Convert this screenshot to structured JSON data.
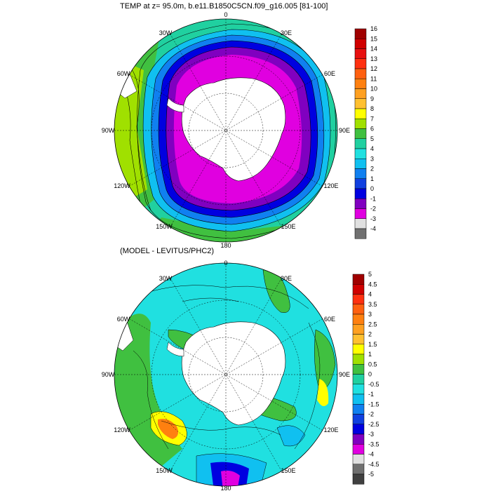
{
  "top_panel": {
    "title": "TEMP at z=  95.0m, b.e11.B1850C5CN.f09_g16.005 [81-100]",
    "longitude_labels": [
      "0",
      "30E",
      "60E",
      "90E",
      "120E",
      "150E",
      "180",
      "150W",
      "120W",
      "90W",
      "60W",
      "30W"
    ],
    "colorbar": {
      "labels": [
        "16",
        "15",
        "14",
        "13",
        "12",
        "11",
        "10",
        "9",
        "8",
        "7",
        "6",
        "5",
        "4",
        "3",
        "2",
        "1",
        "0",
        "-1",
        "-2",
        "-3",
        "-4"
      ],
      "colors": [
        "#a00000",
        "#d00000",
        "#e81010",
        "#ff3010",
        "#ff6010",
        "#ff8010",
        "#ffa020",
        "#ffc030",
        "#ffff00",
        "#a0e000",
        "#40c040",
        "#20d0a0",
        "#20e0e0",
        "#10c0f0",
        "#1080f0",
        "#1040e0",
        "#0000e0",
        "#8000c0",
        "#e000e0",
        "#e0e0e0",
        "#707070"
      ]
    }
  },
  "bottom_panel": {
    "title": "(MODEL - LEVITUS/PHC2)",
    "longitude_labels": [
      "0",
      "30E",
      "60E",
      "90E",
      "120E",
      "150E",
      "180",
      "150W",
      "120W",
      "90W",
      "60W",
      "30W"
    ],
    "colorbar": {
      "labels": [
        "5",
        "4.5",
        "4",
        "3.5",
        "3",
        "2.5",
        "2",
        "1.5",
        "1",
        "0.5",
        "0",
        "-0.5",
        "-1",
        "-1.5",
        "-2",
        "-2.5",
        "-3",
        "-3.5",
        "-4",
        "-4.5",
        "-5"
      ],
      "colors": [
        "#a00000",
        "#d00000",
        "#ff3010",
        "#ff6010",
        "#ff8010",
        "#ffa020",
        "#ffc030",
        "#ffff00",
        "#a0e000",
        "#40c040",
        "#20d0a0",
        "#20e0e0",
        "#10c0f0",
        "#1080f0",
        "#1040e0",
        "#0000e0",
        "#8000c0",
        "#e000e0",
        "#e0e0e0",
        "#707070",
        "#404040"
      ]
    }
  }
}
